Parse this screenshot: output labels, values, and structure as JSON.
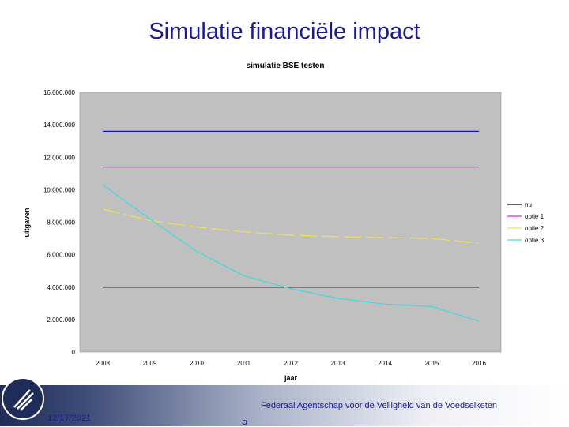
{
  "slide": {
    "title": "Simulatie financiële impact",
    "footer_org": "Federaal Agentschap voor de Veiligheid van de Voedselketen",
    "date": "12/17/2021",
    "page_number": "5"
  },
  "colors": {
    "plot_background": "#c0c0c0",
    "nu": "#000000",
    "optie1": "#e020e0",
    "optie2": "#f2e24a",
    "optie3": "#40d8e0",
    "top_line": "#1a1a9c",
    "title": "#1a1a8c"
  },
  "chart_data": {
    "type": "line",
    "title": "simulatie BSE testen",
    "xlabel": "jaar",
    "ylabel": "uitgaven",
    "categories": [
      "2008",
      "2009",
      "2010",
      "2011",
      "2012",
      "2013",
      "2014",
      "2015",
      "2016"
    ],
    "ylim": [
      0,
      16000000
    ],
    "yticks": [
      0,
      2000000,
      4000000,
      6000000,
      8000000,
      10000000,
      12000000,
      14000000,
      16000000
    ],
    "ytick_labels": [
      "0",
      "2.000.000",
      "4.000.000",
      "6.000.000",
      "8.000.000",
      "10.000.000",
      "12.000.000",
      "14.000.000",
      "16.000.000"
    ],
    "legend_position": "right",
    "grid": false,
    "series": [
      {
        "name": "nu",
        "color_key": "nu",
        "dash": false,
        "values": [
          4000000,
          4000000,
          4000000,
          4000000,
          4000000,
          4000000,
          4000000,
          4000000,
          4000000
        ]
      },
      {
        "name": "optie 1",
        "color_key": "optie1",
        "dash": false,
        "values": [
          11400000,
          11400000,
          11400000,
          11400000,
          11400000,
          11400000,
          11400000,
          11400000,
          11400000
        ]
      },
      {
        "name": "optie 2",
        "color_key": "optie2",
        "dash": true,
        "values": [
          8800000,
          8100000,
          7700000,
          7400000,
          7200000,
          7100000,
          7050000,
          7000000,
          6700000
        ]
      },
      {
        "name": "optie 3",
        "color_key": "optie3",
        "dash": false,
        "values": [
          10300000,
          8200000,
          6200000,
          4700000,
          3900000,
          3300000,
          2950000,
          2800000,
          1900000
        ]
      },
      {
        "name": "",
        "color_key": "top_line",
        "dash": false,
        "legend": false,
        "values": [
          13600000,
          13600000,
          13600000,
          13600000,
          13600000,
          13600000,
          13600000,
          13600000,
          13600000
        ]
      }
    ]
  }
}
